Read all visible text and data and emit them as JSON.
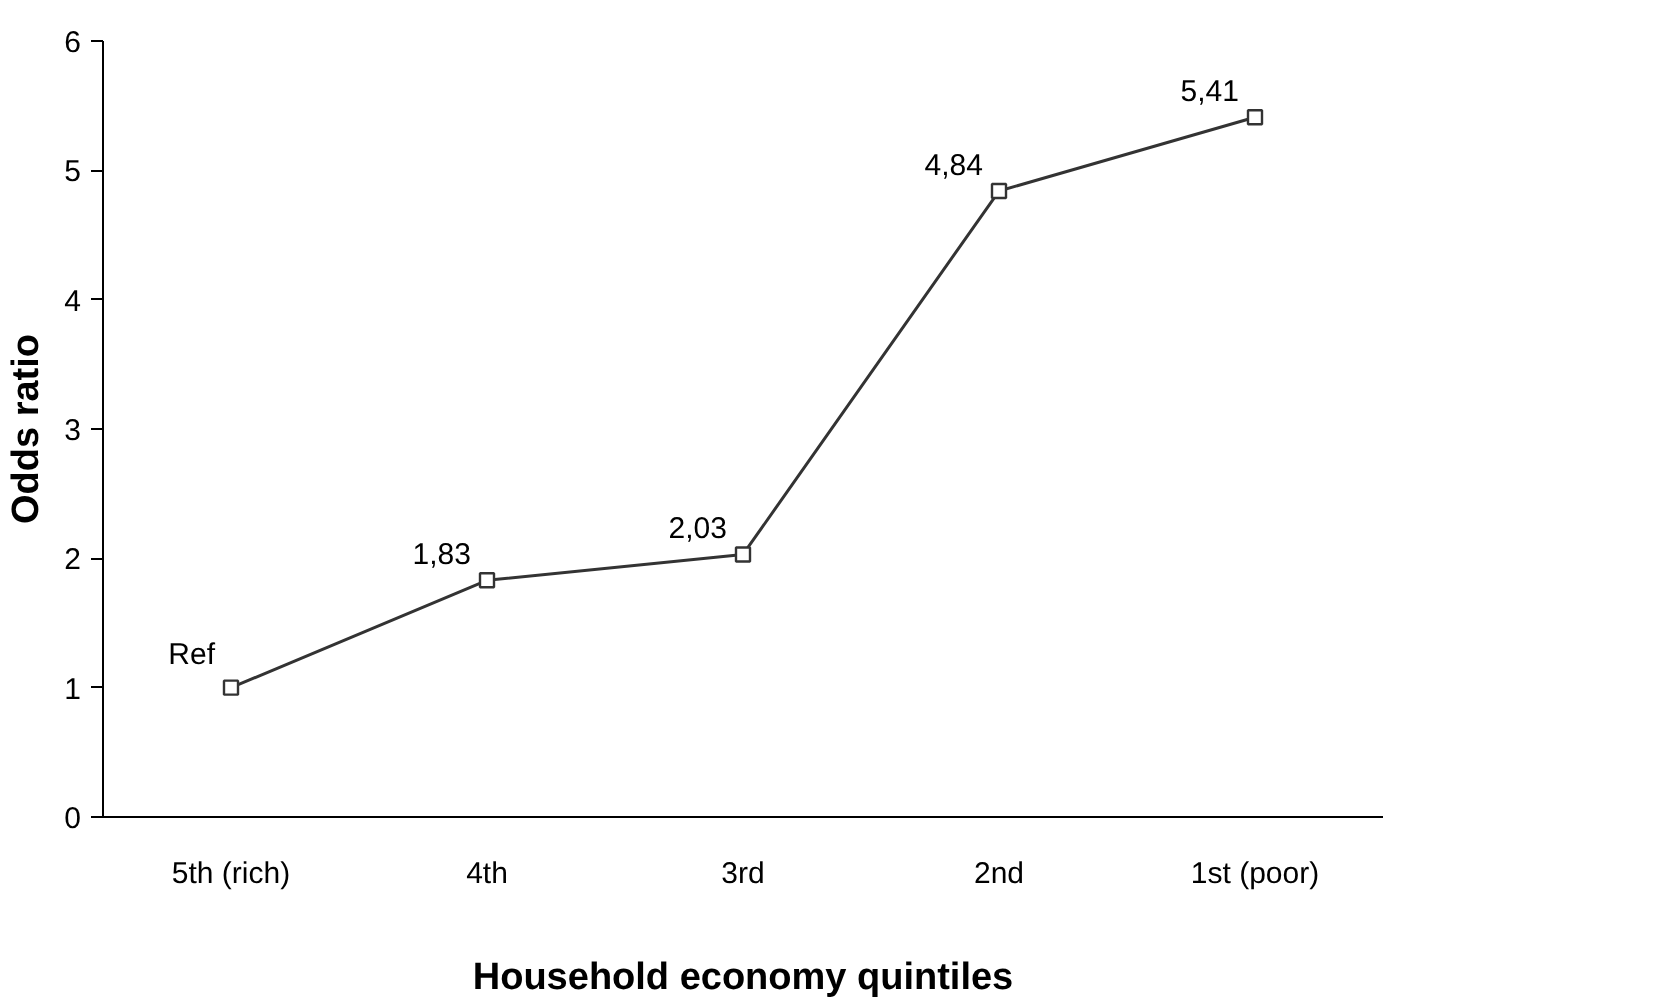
{
  "chart_data": {
    "type": "line",
    "xlabel": "Household economy quintiles",
    "ylabel": "Odds ratio",
    "categories": [
      "5th (rich)",
      "4th",
      "3rd",
      "2nd",
      "1st (poor)"
    ],
    "values": [
      1,
      1.83,
      2.03,
      4.84,
      5.41
    ],
    "value_labels": [
      "Ref",
      "1,83",
      "2,03",
      "4,84",
      "5,41"
    ],
    "color": "#333333",
    "marker": "square",
    "line_style": "solid",
    "ylim": [
      0,
      6
    ],
    "yticks": [
      0,
      1,
      2,
      3,
      4,
      5,
      6
    ],
    "grid": false
  }
}
